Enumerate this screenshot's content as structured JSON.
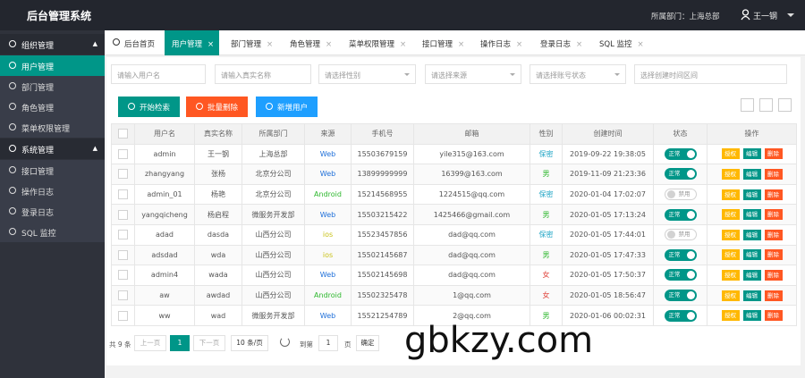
{
  "header": {
    "title": "后台管理系统",
    "department": "所属部门：上海总部",
    "user": "王一钢"
  },
  "sidebar": {
    "groups": [
      {
        "title": "组织管理",
        "items": [
          "用户管理",
          "部门管理",
          "角色管理",
          "菜单权限管理"
        ]
      },
      {
        "title": "系统管理",
        "items": [
          "接口管理",
          "操作日志",
          "登录日志",
          "SQL 监控"
        ]
      }
    ],
    "active": {
      "group": 0,
      "item": 0
    }
  },
  "tabs": {
    "home": "后台首页",
    "items": [
      "用户管理",
      "部门管理",
      "角色管理",
      "菜单权限管理",
      "接口管理",
      "操作日志",
      "登录日志",
      "SQL 监控"
    ],
    "active": 0
  },
  "filters": [
    "请输入用户名",
    "请输入真实名称",
    "请选择性别",
    "请选择来源",
    "请选择账号状态",
    "选择创建时间区间"
  ],
  "buttons": [
    "开始检索",
    "批量删除",
    "新增用户"
  ],
  "table": {
    "columns": [
      "用户名",
      "真实名称",
      "所属部门",
      "来源",
      "手机号",
      "邮箱",
      "性别",
      "创建时间",
      "状态",
      "操作"
    ],
    "rows": [
      {
        "cells": [
          "admin",
          "王一钢",
          "上海总部",
          "Web",
          "15503679159",
          "yile315@163.com",
          "保密",
          "2019-09-22 19:38:05"
        ],
        "status": {
          "label": "正常",
          "on": true
        }
      },
      {
        "cells": [
          "zhangyang",
          "张杨",
          "北京分公司",
          "Web",
          "13899999999",
          "16399@163.com",
          "男",
          "2019-11-09 21:23:36"
        ],
        "status": {
          "label": "正常",
          "on": true
        }
      },
      {
        "cells": [
          "admin_01",
          "杨艳",
          "北京分公司",
          "Android",
          "15214568955",
          "1224515@qq.com",
          "保密",
          "2020-01-04 17:02:07"
        ],
        "status": {
          "label": "禁用",
          "on": false
        }
      },
      {
        "cells": [
          "yangqicheng",
          "杨启程",
          "微服务开发部",
          "Web",
          "15503215422",
          "1425466@gmail.com",
          "男",
          "2020-01-05 17:13:24"
        ],
        "status": {
          "label": "正常",
          "on": true
        }
      },
      {
        "cells": [
          "adad",
          "dasda",
          "山西分公司",
          "ios",
          "15523457856",
          "dad@qq.com",
          "保密",
          "2020-01-05 17:44:01"
        ],
        "status": {
          "label": "禁用",
          "on": false
        }
      },
      {
        "cells": [
          "adsdad",
          "wda",
          "山西分公司",
          "ios",
          "15502145687",
          "dad@qq.com",
          "男",
          "2020-01-05 17:47:33"
        ],
        "status": {
          "label": "正常",
          "on": true
        }
      },
      {
        "cells": [
          "admin4",
          "wada",
          "山西分公司",
          "Web",
          "15502145698",
          "dad@qq.com",
          "女",
          "2020-01-05 17:50:37"
        ],
        "status": {
          "label": "正常",
          "on": true
        }
      },
      {
        "cells": [
          "aw",
          "awdad",
          "山西分公司",
          "Android",
          "15502325478",
          "1@qq.com",
          "女",
          "2020-01-05 18:56:47"
        ],
        "status": {
          "label": "正常",
          "on": true
        }
      },
      {
        "cells": [
          "ww",
          "wad",
          "微服务开发部",
          "Web",
          "15521254789",
          "2@qq.com",
          "男",
          "2020-01-06 00:02:31"
        ],
        "status": {
          "label": "正常",
          "on": true
        }
      }
    ],
    "actions": [
      "授权",
      "编辑",
      "删除"
    ],
    "source_colors": {
      "Web": "#1e6fd9",
      "Android": "#2eb82e",
      "ios": "#c9c21a"
    },
    "gender_colors": {
      "保密": "#1aa3c4",
      "男": "#2eb82e",
      "女": "#e0443c"
    }
  },
  "pagination": {
    "total": "共 9 条",
    "prev": "上一页",
    "page": "1",
    "next": "下一页",
    "page_size": "10 条/页",
    "goto": "到第",
    "goto_value": "1",
    "page_unit": "页",
    "confirm": "确定"
  },
  "watermark": "gbkzy.com"
}
